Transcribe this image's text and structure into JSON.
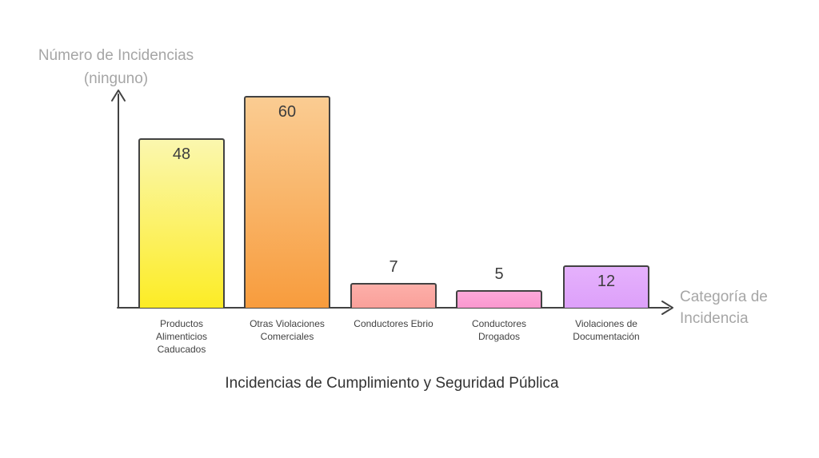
{
  "chart_data": {
    "type": "bar",
    "title": "Incidencias de Cumplimiento y Seguridad Pública",
    "xlabel": "Categoría de Incidencia",
    "ylabel": "Número de Incidencias (ninguno)",
    "categories": [
      "Productos\nAlimenticios\nCaducados",
      "Otras Violaciones\nComerciales",
      "Conductores Ebrio",
      "Conductores\nDrogados",
      "Violaciones de\nDocumentación"
    ],
    "values": [
      48,
      60,
      7,
      5,
      12
    ],
    "ylim": [
      0,
      60
    ],
    "grid": false,
    "legend": "none",
    "bar_colors": [
      {
        "top": "#fbf7ae",
        "bottom": "#fcec25"
      },
      {
        "top": "#facc92",
        "bottom": "#f89c3d"
      },
      {
        "top": "#fcafa9",
        "bottom": "#faa09a"
      },
      {
        "top": "#fca8da",
        "bottom": "#fa98cf"
      },
      {
        "top": "#e5b1fc",
        "bottom": "#dda0fa"
      }
    ],
    "colors": {
      "axis": "#424242",
      "value_label": "#3d3d3d",
      "tick_label": "#424242",
      "axis_title": "#a6a6a6",
      "title": "#333333",
      "background": "#ffffff"
    }
  }
}
